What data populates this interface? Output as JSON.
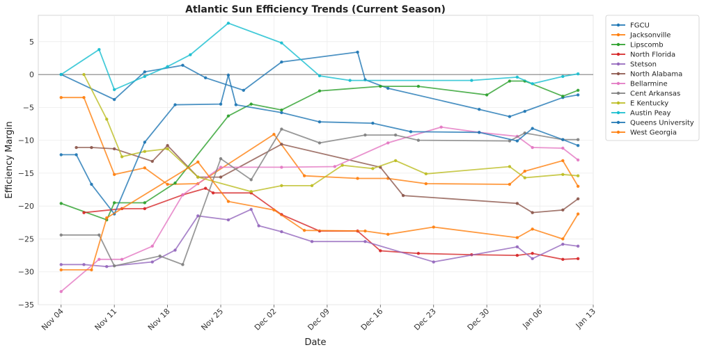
{
  "chart_data": {
    "type": "line",
    "title": "Atlantic Sun Efficiency Trends (Current Season)",
    "xlabel": "Date",
    "ylabel": "Efficiency Margin",
    "x_range": [
      "2024-11-01",
      "2025-01-13"
    ],
    "ylim": [
      -35,
      9
    ],
    "x_ticks": [
      {
        "date": "2024-11-04",
        "label": "Nov 04"
      },
      {
        "date": "2024-11-11",
        "label": "Nov 11"
      },
      {
        "date": "2024-11-18",
        "label": "Nov 18"
      },
      {
        "date": "2024-11-25",
        "label": "Nov 25"
      },
      {
        "date": "2024-12-02",
        "label": "Dec 02"
      },
      {
        "date": "2024-12-09",
        "label": "Dec 09"
      },
      {
        "date": "2024-12-16",
        "label": "Dec 16"
      },
      {
        "date": "2024-12-23",
        "label": "Dec 23"
      },
      {
        "date": "2024-12-30",
        "label": "Dec 30"
      },
      {
        "date": "2025-01-06",
        "label": "Jan 06"
      },
      {
        "date": "2025-01-13",
        "label": "Jan 13"
      }
    ],
    "y_ticks": [
      5,
      0,
      -5,
      -10,
      -15,
      -20,
      -25,
      -30,
      -35
    ],
    "zero_line": true,
    "grid": true,
    "legend_position": "outside-right",
    "series": [
      {
        "name": "FGCU",
        "color": "#1f77b4",
        "points": [
          [
            "2024-11-04",
            0.0
          ],
          [
            "2024-11-11",
            -3.8
          ],
          [
            "2024-11-15",
            0.4
          ],
          [
            "2024-11-20",
            1.4
          ],
          [
            "2024-11-23",
            -0.5
          ],
          [
            "2024-11-28",
            -2.4
          ],
          [
            "2024-12-03",
            1.9
          ],
          [
            "2024-12-13",
            3.4
          ],
          [
            "2024-12-14",
            -0.8
          ],
          [
            "2024-12-17",
            -2.1
          ],
          [
            "2024-12-29",
            -5.3
          ],
          [
            "2025-01-02",
            -6.4
          ],
          [
            "2025-01-04",
            -5.6
          ],
          [
            "2025-01-09",
            -3.5
          ],
          [
            "2025-01-11",
            -3.1
          ]
        ]
      },
      {
        "name": "Jacksonville",
        "color": "#ff7f0e",
        "points": [
          [
            "2024-11-04",
            -3.5
          ],
          [
            "2024-11-07",
            -3.5
          ],
          [
            "2024-11-11",
            -15.2
          ],
          [
            "2024-11-15",
            -14.2
          ],
          [
            "2024-11-18",
            -16.7
          ],
          [
            "2024-11-22",
            -16.6
          ],
          [
            "2024-12-02",
            -9.1
          ],
          [
            "2024-12-06",
            -15.4
          ],
          [
            "2024-12-13",
            -15.8
          ],
          [
            "2024-12-17",
            -15.8
          ],
          [
            "2024-12-22",
            -16.6
          ],
          [
            "2025-01-02",
            -16.7
          ],
          [
            "2025-01-04",
            -14.7
          ],
          [
            "2025-01-09",
            -13.1
          ],
          [
            "2025-01-11",
            -17.0
          ]
        ]
      },
      {
        "name": "Lipscomb",
        "color": "#2ca02c",
        "points": [
          [
            "2024-11-04",
            -19.6
          ],
          [
            "2024-11-10",
            -22.1
          ],
          [
            "2024-11-11",
            -19.5
          ],
          [
            "2024-11-15",
            -19.5
          ],
          [
            "2024-11-19",
            -16.5
          ],
          [
            "2024-11-26",
            -6.3
          ],
          [
            "2024-11-29",
            -4.5
          ],
          [
            "2024-12-03",
            -5.4
          ],
          [
            "2024-12-08",
            -2.5
          ],
          [
            "2024-12-16",
            -1.8
          ],
          [
            "2024-12-21",
            -1.8
          ],
          [
            "2024-12-30",
            -3.1
          ],
          [
            "2025-01-02",
            -1.0
          ],
          [
            "2025-01-04",
            -1.0
          ],
          [
            "2025-01-09",
            -3.3
          ],
          [
            "2025-01-11",
            -2.4
          ]
        ]
      },
      {
        "name": "North Florida",
        "color": "#d62728",
        "points": [
          [
            "2024-11-07",
            -21.0
          ],
          [
            "2024-11-12",
            -20.4
          ],
          [
            "2024-11-15",
            -20.4
          ],
          [
            "2024-11-20",
            -18.3
          ],
          [
            "2024-11-23",
            -17.3
          ],
          [
            "2024-11-24",
            -18.0
          ],
          [
            "2024-11-29",
            -18.0
          ],
          [
            "2024-12-03",
            -21.3
          ],
          [
            "2024-12-08",
            -23.8
          ],
          [
            "2024-12-13",
            -23.8
          ],
          [
            "2024-12-16",
            -26.8
          ],
          [
            "2024-12-21",
            -27.2
          ],
          [
            "2024-12-28",
            -27.4
          ],
          [
            "2025-01-03",
            -27.5
          ],
          [
            "2025-01-05",
            -27.2
          ],
          [
            "2025-01-09",
            -28.1
          ],
          [
            "2025-01-11",
            -28.0
          ]
        ]
      },
      {
        "name": "Stetson",
        "color": "#9467bd",
        "points": [
          [
            "2024-11-04",
            -28.9
          ],
          [
            "2024-11-07",
            -28.9
          ],
          [
            "2024-11-10",
            -29.2
          ],
          [
            "2024-11-16",
            -28.5
          ],
          [
            "2024-11-19",
            -26.7
          ],
          [
            "2024-11-22",
            -21.5
          ],
          [
            "2024-11-26",
            -22.1
          ],
          [
            "2024-11-29",
            -20.5
          ],
          [
            "2024-11-30",
            -23.0
          ],
          [
            "2024-12-03",
            -23.9
          ],
          [
            "2024-12-07",
            -25.4
          ],
          [
            "2024-12-14",
            -25.4
          ],
          [
            "2024-12-23",
            -28.5
          ],
          [
            "2025-01-03",
            -26.2
          ],
          [
            "2025-01-05",
            -28.0
          ],
          [
            "2025-01-09",
            -25.8
          ],
          [
            "2025-01-11",
            -26.1
          ]
        ]
      },
      {
        "name": "North Alabama",
        "color": "#8c564b",
        "points": [
          [
            "2024-11-06",
            -11.1
          ],
          [
            "2024-11-08",
            -11.1
          ],
          [
            "2024-11-11",
            -11.3
          ],
          [
            "2024-11-16",
            -13.2
          ],
          [
            "2024-11-18",
            -10.8
          ],
          [
            "2024-11-22",
            -15.6
          ],
          [
            "2024-11-25",
            -15.6
          ],
          [
            "2024-12-03",
            -10.6
          ],
          [
            "2024-12-16",
            -14.1
          ],
          [
            "2024-12-19",
            -18.4
          ],
          [
            "2025-01-03",
            -19.6
          ],
          [
            "2025-01-05",
            -21.0
          ],
          [
            "2025-01-09",
            -20.6
          ],
          [
            "2025-01-11",
            -18.9
          ]
        ]
      },
      {
        "name": "Bellarmine",
        "color": "#e377c2",
        "points": [
          [
            "2024-11-04",
            -33.0
          ],
          [
            "2024-11-09",
            -28.1
          ],
          [
            "2024-11-12",
            -28.1
          ],
          [
            "2024-11-16",
            -26.1
          ],
          [
            "2024-11-20",
            -18.3
          ],
          [
            "2024-11-25",
            -14.1
          ],
          [
            "2024-12-03",
            -14.1
          ],
          [
            "2024-12-10",
            -14.0
          ],
          [
            "2024-12-17",
            -10.4
          ],
          [
            "2024-12-24",
            -8.0
          ],
          [
            "2024-12-29",
            -8.8
          ],
          [
            "2025-01-03",
            -9.4
          ],
          [
            "2025-01-05",
            -11.1
          ],
          [
            "2025-01-09",
            -11.2
          ],
          [
            "2025-01-11",
            -13.0
          ]
        ]
      },
      {
        "name": "Cent Arkansas",
        "color": "#7f7f7f",
        "points": [
          [
            "2024-11-04",
            -24.4
          ],
          [
            "2024-11-09",
            -24.4
          ],
          [
            "2024-11-11",
            -29.1
          ],
          [
            "2024-11-17",
            -27.6
          ],
          [
            "2024-11-20",
            -28.9
          ],
          [
            "2024-11-25",
            -12.8
          ],
          [
            "2024-11-29",
            -16.0
          ],
          [
            "2024-12-03",
            -8.3
          ],
          [
            "2024-12-08",
            -10.4
          ],
          [
            "2024-12-14",
            -9.2
          ],
          [
            "2024-12-18",
            -9.2
          ],
          [
            "2024-12-21",
            -10.0
          ],
          [
            "2025-01-02",
            -10.1
          ],
          [
            "2025-01-04",
            -8.9
          ],
          [
            "2025-01-09",
            -9.9
          ],
          [
            "2025-01-11",
            -9.9
          ]
        ]
      },
      {
        "name": "E Kentucky",
        "color": "#bcbd22",
        "points": [
          [
            "2024-11-07",
            0.0
          ],
          [
            "2024-11-10",
            -6.8
          ],
          [
            "2024-11-12",
            -12.5
          ],
          [
            "2024-11-15",
            -11.7
          ],
          [
            "2024-11-18",
            -11.3
          ],
          [
            "2024-11-22",
            -15.6
          ],
          [
            "2024-11-29",
            -17.8
          ],
          [
            "2024-12-03",
            -16.9
          ],
          [
            "2024-12-07",
            -16.9
          ],
          [
            "2024-12-11",
            -13.8
          ],
          [
            "2024-12-15",
            -14.3
          ],
          [
            "2024-12-18",
            -13.1
          ],
          [
            "2024-12-22",
            -15.1
          ],
          [
            "2025-01-02",
            -14.0
          ],
          [
            "2025-01-04",
            -15.7
          ],
          [
            "2025-01-09",
            -15.2
          ],
          [
            "2025-01-11",
            -15.4
          ]
        ]
      },
      {
        "name": "Austin Peay",
        "color": "#17becf",
        "points": [
          [
            "2024-11-04",
            0.0
          ],
          [
            "2024-11-09",
            3.8
          ],
          [
            "2024-11-11",
            -2.3
          ],
          [
            "2024-11-15",
            -0.3
          ],
          [
            "2024-11-18",
            1.2
          ],
          [
            "2024-11-21",
            3.0
          ],
          [
            "2024-11-26",
            7.8
          ],
          [
            "2024-12-03",
            4.8
          ],
          [
            "2024-12-08",
            -0.2
          ],
          [
            "2024-12-12",
            -0.9
          ],
          [
            "2024-12-28",
            -0.9
          ],
          [
            "2025-01-03",
            -0.4
          ],
          [
            "2025-01-05",
            -1.4
          ],
          [
            "2025-01-09",
            -0.3
          ],
          [
            "2025-01-11",
            0.1
          ]
        ]
      },
      {
        "name": "Queens University",
        "color": "#1f77b4",
        "points": [
          [
            "2024-11-04",
            -12.2
          ],
          [
            "2024-11-06",
            -12.2
          ],
          [
            "2024-11-08",
            -16.7
          ],
          [
            "2024-11-11",
            -21.2
          ],
          [
            "2024-11-15",
            -10.3
          ],
          [
            "2024-11-19",
            -4.6
          ],
          [
            "2024-11-25",
            -4.5
          ],
          [
            "2024-11-26",
            -0.1
          ],
          [
            "2024-11-27",
            -4.6
          ],
          [
            "2024-12-03",
            -5.8
          ],
          [
            "2024-12-08",
            -7.2
          ],
          [
            "2024-12-15",
            -7.4
          ],
          [
            "2024-12-20",
            -8.7
          ],
          [
            "2024-12-29",
            -8.8
          ],
          [
            "2025-01-03",
            -10.1
          ],
          [
            "2025-01-05",
            -8.2
          ],
          [
            "2025-01-09",
            -9.9
          ],
          [
            "2025-01-11",
            -10.8
          ]
        ]
      },
      {
        "name": "West Georgia",
        "color": "#ff7f0e",
        "points": [
          [
            "2024-11-04",
            -29.7
          ],
          [
            "2024-11-08",
            -29.7
          ],
          [
            "2024-11-10",
            -21.8
          ],
          [
            "2024-11-22",
            -13.3
          ],
          [
            "2024-11-26",
            -19.3
          ],
          [
            "2024-12-02",
            -20.6
          ],
          [
            "2024-12-06",
            -23.7
          ],
          [
            "2024-12-14",
            -23.8
          ],
          [
            "2024-12-17",
            -24.3
          ],
          [
            "2024-12-23",
            -23.2
          ],
          [
            "2025-01-03",
            -24.8
          ],
          [
            "2025-01-05",
            -23.5
          ],
          [
            "2025-01-09",
            -25.0
          ],
          [
            "2025-01-11",
            -21.2
          ]
        ]
      }
    ]
  }
}
